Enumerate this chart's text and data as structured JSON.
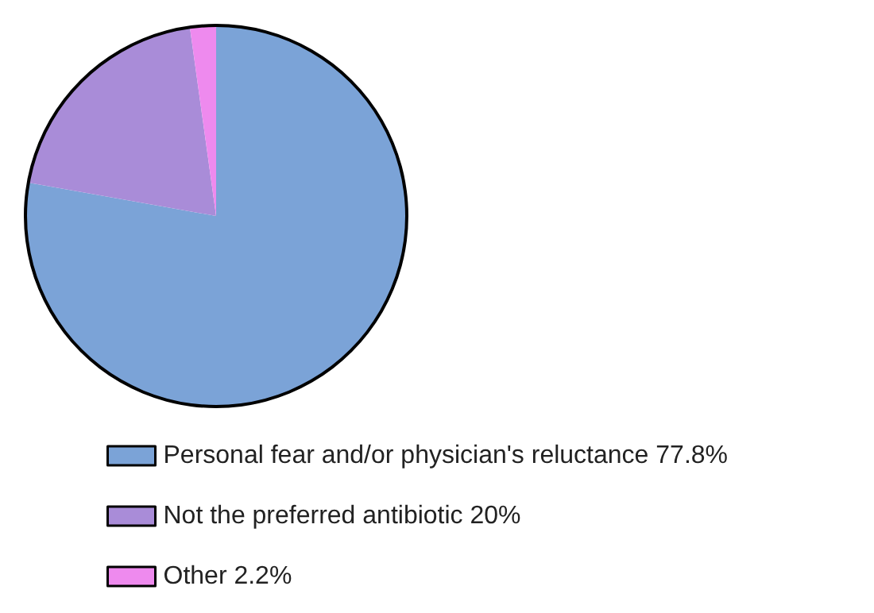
{
  "chart_data": {
    "type": "pie",
    "categories": [
      "Personal fear and/or physician's reluctance 77.8%",
      "Not the preferred antibiotic 20%",
      "Other 2.2%"
    ],
    "values": [
      77.8,
      20,
      2.2
    ],
    "colors": [
      "#7ba3d7",
      "#a98cd8",
      "#ee8aee"
    ],
    "legend": "bottom"
  }
}
